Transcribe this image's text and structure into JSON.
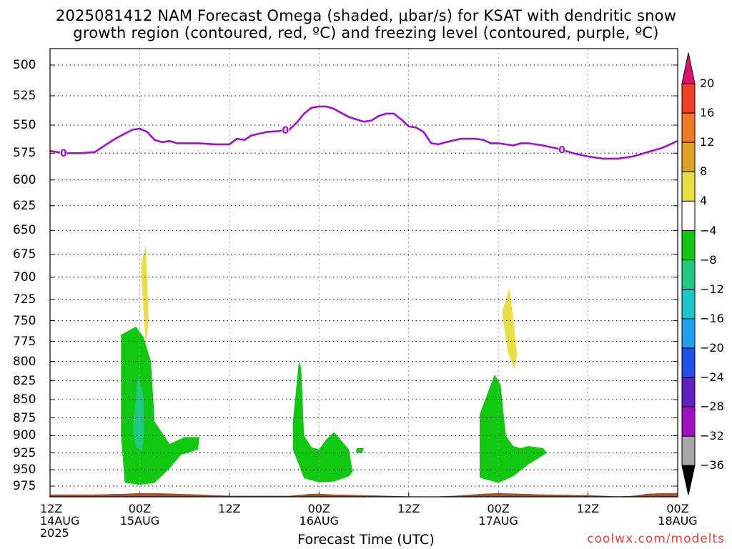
{
  "title_line1": "2025081412 NAM Forecast Omega (shaded, μbar/s) for KSAT with dendritic snow",
  "title_line2": "growth region (contoured, red, ºC) and freezing level (contoured, purple, ºC)",
  "xlabel": "Forecast Time (UTC)",
  "credit": "coolwx.com/modelts",
  "chart_data": {
    "type": "heatmap",
    "title": "2025081412 NAM Forecast Omega (shaded, μbar/s) for KSAT with dendritic snow growth region (contoured, red, ºC) and freezing level (contoured, purple, ºC)",
    "xlabel": "Forecast Time (UTC)",
    "ylabel": "",
    "y_axis": {
      "ticks": [
        500,
        525,
        550,
        575,
        600,
        625,
        650,
        675,
        700,
        725,
        750,
        775,
        800,
        825,
        850,
        875,
        900,
        925,
        950,
        975
      ],
      "range": [
        487,
        987
      ],
      "scale": "log",
      "inverted": true
    },
    "x_axis": {
      "range_hours": [
        0,
        84
      ],
      "ticks": [
        {
          "hour": 0,
          "label": "12Z",
          "sublabel": "14AUG",
          "year": "2025"
        },
        {
          "hour": 12,
          "label": "00Z",
          "sublabel": "15AUG"
        },
        {
          "hour": 24,
          "label": "12Z",
          "sublabel": ""
        },
        {
          "hour": 36,
          "label": "00Z",
          "sublabel": "16AUG"
        },
        {
          "hour": 48,
          "label": "12Z",
          "sublabel": ""
        },
        {
          "hour": 60,
          "label": "00Z",
          "sublabel": "17AUG"
        },
        {
          "hour": 72,
          "label": "12Z",
          "sublabel": ""
        },
        {
          "hour": 84,
          "label": "00Z",
          "sublabel": "18AUG"
        }
      ],
      "grid": true
    },
    "grid": true,
    "colorbar": {
      "labels": [
        20,
        16,
        12,
        8,
        4,
        -4,
        -8,
        -12,
        -16,
        -20,
        -24,
        -28,
        -32,
        -36
      ],
      "colors": [
        "#e0106e",
        "#f0402a",
        "#f07a20",
        "#e0a020",
        "#e8e040",
        "#ffffff",
        "#10c810",
        "#20c880",
        "#18c8c8",
        "#20a0f0",
        "#2050e8",
        "#6020c0",
        "#a010c0",
        "#a8a8a8",
        "#000000"
      ]
    },
    "freezing_level": {
      "name": "freezing level",
      "contour_label": "0",
      "color": "#a010d0",
      "hours": [
        0,
        2,
        4,
        6,
        8,
        9,
        11,
        12,
        13,
        14,
        15,
        16,
        17,
        18,
        20,
        22,
        24,
        25,
        26,
        27,
        29,
        31,
        32,
        33,
        34,
        35,
        36,
        37,
        38,
        40,
        41,
        42,
        43,
        44,
        45,
        46,
        47,
        48,
        49,
        50,
        51,
        52,
        53,
        55,
        56,
        57,
        58,
        59,
        60,
        62,
        63,
        64,
        65,
        66,
        68,
        70,
        72,
        74,
        76,
        78,
        80,
        82,
        84
      ],
      "pressure": [
        573,
        575,
        575,
        574,
        565,
        561,
        554,
        553,
        556,
        563,
        565,
        564,
        566,
        566,
        566,
        567,
        567,
        562,
        563,
        559,
        556,
        555,
        554,
        548,
        540,
        535,
        534,
        534,
        536,
        543,
        545,
        547,
        546,
        542,
        540,
        540,
        545,
        551,
        552,
        556,
        566,
        567,
        565,
        562,
        562,
        562,
        563,
        566,
        566,
        568,
        566,
        566,
        567,
        568,
        571,
        575,
        578,
        580,
        580,
        578,
        574,
        570,
        564
      ]
    },
    "omega_regions": [
      {
        "shade": "-8 to -4",
        "hours": [
          9.5,
          11.5,
          12.5,
          13.5,
          14,
          16,
          18,
          20,
          19.8,
          17.5,
          16,
          14,
          12,
          10,
          9.5
        ],
        "pressure": [
          767,
          757,
          770,
          800,
          880,
          912,
          902,
          902,
          920,
          928,
          948,
          970,
          973,
          970,
          900
        ]
      },
      {
        "shade": "-12 to -8",
        "hours": [
          11.3,
          11.8,
          12.5,
          12.6,
          12.3,
          11.6,
          11.1,
          11.2
        ],
        "pressure": [
          870,
          815,
          848,
          898,
          922,
          918,
          898,
          860
        ]
      },
      {
        "shade": "-8 to -4",
        "hours": [
          32.5,
          33.3,
          33.6,
          34,
          35,
          36,
          37,
          38,
          40,
          40.5,
          40,
          38,
          36,
          34,
          32.5
        ],
        "pressure": [
          880,
          800,
          808,
          900,
          917,
          920,
          905,
          895,
          920,
          953,
          960,
          968,
          969,
          963,
          920
        ]
      },
      {
        "shade": "-8 to -4",
        "hours": [
          41,
          42,
          41.8,
          41
        ],
        "pressure": [
          918,
          918,
          925,
          925
        ]
      },
      {
        "shade": "-8 to -4",
        "hours": [
          57.5,
          59.5,
          60.3,
          61,
          62,
          63,
          64,
          66,
          66.5,
          64,
          62,
          60,
          57.5
        ],
        "pressure": [
          870,
          817,
          830,
          900,
          915,
          918,
          915,
          918,
          925,
          942,
          960,
          970,
          962
        ]
      }
    ],
    "positive_regions": [
      {
        "shade": "4 to 8",
        "hours": [
          12.2,
          12.8,
          13.2,
          12.8,
          12.3
        ],
        "pressure": [
          685,
          665,
          750,
          780,
          710
        ]
      },
      {
        "shade": "4 to 8",
        "hours": [
          60.5,
          61.5,
          62.5,
          62.2,
          61.3,
          60.5
        ],
        "pressure": [
          740,
          712,
          790,
          810,
          790,
          740
        ]
      }
    ],
    "terrain": {
      "color": "#a0522d",
      "hours": [
        0,
        6,
        10,
        12,
        14,
        17,
        20,
        24,
        28,
        32,
        35,
        36,
        38,
        42,
        48,
        50,
        54,
        58,
        60,
        63,
        66,
        72,
        74,
        76,
        78,
        80,
        82,
        84
      ],
      "pressure": [
        988,
        988,
        987,
        986,
        986,
        987,
        988,
        990,
        990,
        990,
        987,
        987,
        988,
        989,
        991,
        992,
        990,
        987,
        986,
        987,
        988,
        989,
        990,
        991,
        990,
        987,
        986,
        986
      ]
    }
  }
}
